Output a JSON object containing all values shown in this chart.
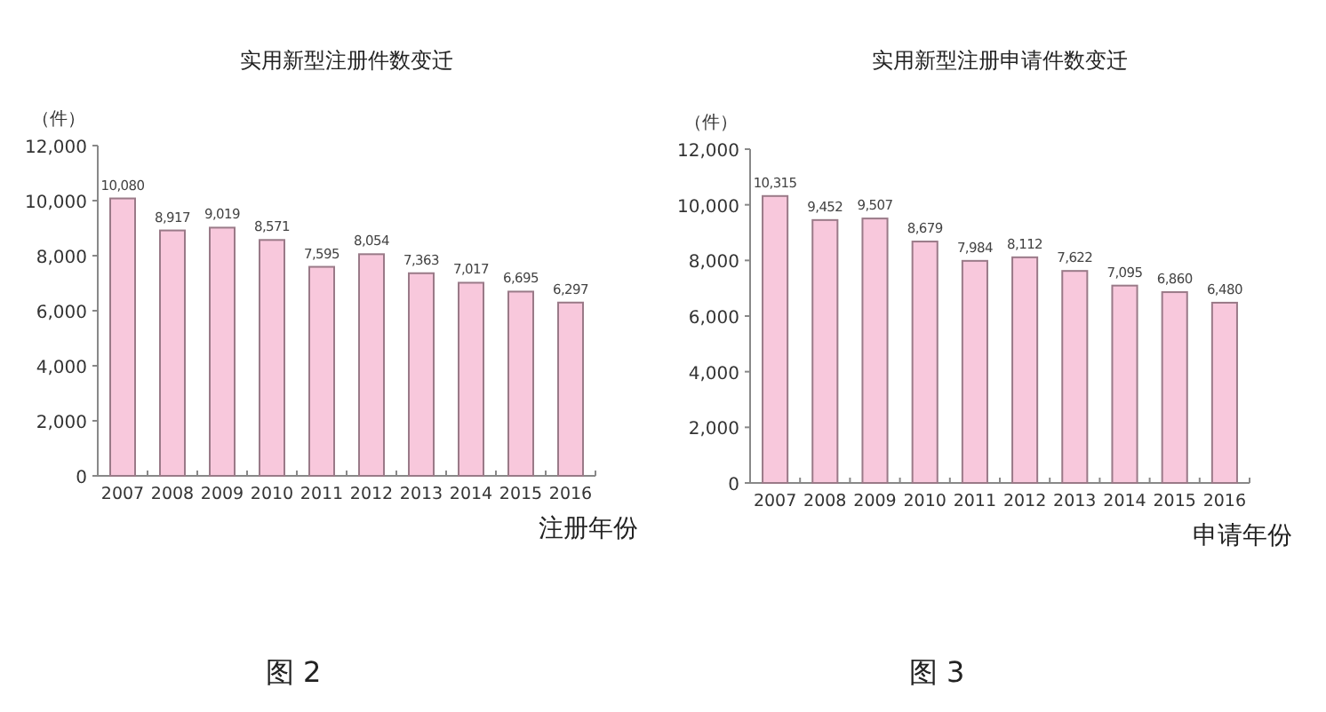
{
  "chart_data": [
    {
      "type": "bar",
      "title": "实用新型注册件数变迁",
      "ylabel": "（件）",
      "xlabel": "注册年份",
      "categories": [
        "2007",
        "2008",
        "2009",
        "2010",
        "2011",
        "2012",
        "2013",
        "2014",
        "2015",
        "2016"
      ],
      "values": [
        10080,
        8917,
        9019,
        8571,
        7595,
        8054,
        7363,
        7017,
        6695,
        6297
      ],
      "value_labels": [
        "10,080",
        "8,917",
        "9,019",
        "8,571",
        "7,595",
        "8,054",
        "7,363",
        "7,017",
        "6,695",
        "6,297"
      ],
      "color": "#f8c8dc",
      "ylim": [
        0,
        12000
      ],
      "yticks": [
        {
          "value": 0,
          "label": "0"
        },
        {
          "value": 2000,
          "label": "2,000"
        },
        {
          "value": 4000,
          "label": "4,000"
        },
        {
          "value": 6000,
          "label": "6,000"
        },
        {
          "value": 8000,
          "label": "8,000"
        },
        {
          "value": 10000,
          "label": "10,000"
        },
        {
          "value": 12000,
          "label": "12,000"
        }
      ],
      "annotations": [
        "图 2"
      ]
    },
    {
      "type": "bar",
      "title": "实用新型注册申请件数变迁",
      "ylabel": "（件）",
      "xlabel": "申请年份",
      "categories": [
        "2007",
        "2008",
        "2009",
        "2010",
        "2011",
        "2012",
        "2013",
        "2014",
        "2015",
        "2016"
      ],
      "values": [
        10315,
        9452,
        9507,
        8679,
        7984,
        8112,
        7622,
        7095,
        6860,
        6480
      ],
      "value_labels": [
        "10,315",
        "9,452",
        "9,507",
        "8,679",
        "7,984",
        "8,112",
        "7,622",
        "7,095",
        "6,860",
        "6,480"
      ],
      "color": "#f8c8dc",
      "ylim": [
        0,
        12000
      ],
      "yticks": [
        {
          "value": 0,
          "label": "0"
        },
        {
          "value": 2000,
          "label": "2,000"
        },
        {
          "value": 4000,
          "label": "4,000"
        },
        {
          "value": 6000,
          "label": "6,000"
        },
        {
          "value": 8000,
          "label": "8,000"
        },
        {
          "value": 10000,
          "label": "10,000"
        },
        {
          "value": 12000,
          "label": "12,000"
        }
      ],
      "annotations": [
        "图 3"
      ]
    }
  ]
}
